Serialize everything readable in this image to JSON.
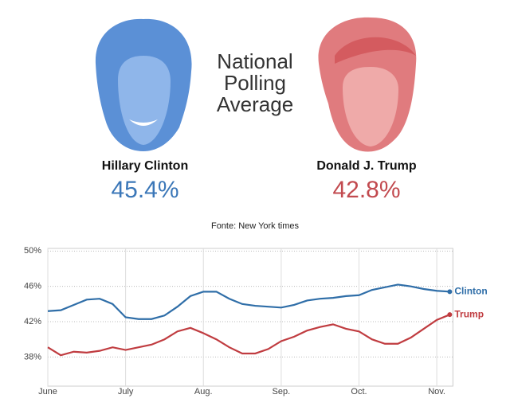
{
  "header": {
    "title": "National Polling Average",
    "candidates": [
      {
        "name": "Hillary Clinton",
        "average": "45.4%",
        "color": "#3b77b8"
      },
      {
        "name": "Donald J. Trump",
        "average": "42.8%",
        "color": "#c24a4f"
      }
    ],
    "source": "Fonte: New York times"
  },
  "chart_data": {
    "type": "line",
    "categories": [
      "June",
      null,
      null,
      null,
      null,
      null,
      "July",
      null,
      null,
      null,
      null,
      null,
      "Aug.",
      null,
      null,
      null,
      null,
      null,
      "Sep.",
      null,
      null,
      null,
      null,
      null,
      "Oct.",
      null,
      null,
      null,
      null,
      null,
      "Nov.",
      null
    ],
    "series": [
      {
        "name": "Clinton",
        "color": "#2f6ea8",
        "values": [
          43.2,
          43.3,
          43.9,
          44.5,
          44.6,
          44.0,
          42.5,
          42.3,
          42.3,
          42.7,
          43.7,
          44.9,
          45.4,
          45.4,
          44.6,
          44.0,
          43.8,
          43.7,
          43.6,
          43.9,
          44.4,
          44.6,
          44.7,
          44.9,
          45.0,
          45.6,
          45.9,
          46.2,
          46.0,
          45.7,
          45.5,
          45.4
        ]
      },
      {
        "name": "Trump",
        "color": "#c03c40",
        "values": [
          39.1,
          38.2,
          38.6,
          38.5,
          38.7,
          39.1,
          38.8,
          39.1,
          39.4,
          40.0,
          40.9,
          41.3,
          40.7,
          40.0,
          39.1,
          38.4,
          38.4,
          38.9,
          39.8,
          40.3,
          41.0,
          41.4,
          41.7,
          41.2,
          40.9,
          40.0,
          39.5,
          39.5,
          40.2,
          41.2,
          42.2,
          42.8
        ]
      }
    ],
    "ylim": [
      34.7,
      50.3
    ],
    "yticks": [
      {
        "value": 38,
        "label": "38%"
      },
      {
        "value": 42,
        "label": "42%"
      },
      {
        "value": 46,
        "label": "46%"
      },
      {
        "value": 50,
        "label": "50%"
      }
    ],
    "grid": true
  }
}
